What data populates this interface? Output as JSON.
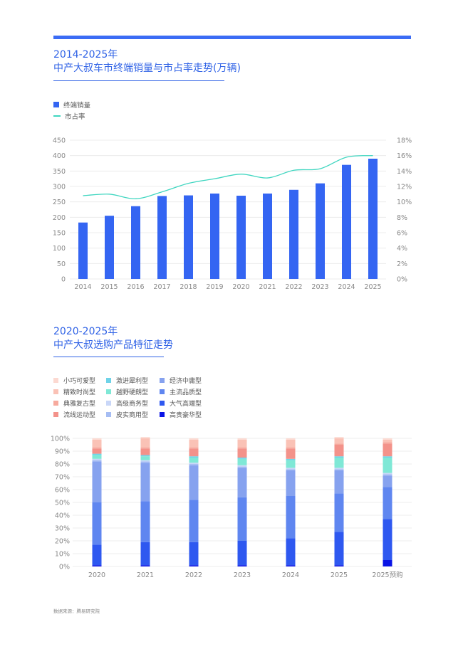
{
  "chart1": {
    "title_line1": "2014-2025年",
    "title_line2": "中产大叔车市终端销量与市占率走势(万辆)",
    "legend": [
      {
        "name": "终端销量",
        "kind": "bar",
        "color": "#3465f2"
      },
      {
        "name": "市占率",
        "kind": "line",
        "color": "#3fd6c0"
      }
    ]
  },
  "chart2": {
    "title_line1": "2020-2025年",
    "title_line2": "中产大叔选购产品特征走势"
  },
  "source": "数据来源：腾易研究院",
  "chart_data": [
    {
      "type": "bar",
      "categories": [
        "2014",
        "2015",
        "2016",
        "2017",
        "2018",
        "2019",
        "2020",
        "2021",
        "2022",
        "2023",
        "2024",
        "2025"
      ],
      "series": [
        {
          "name": "终端销量",
          "type": "bar",
          "axis": "left",
          "color": "#3465f2",
          "values": [
            183,
            205,
            236,
            269,
            271,
            277,
            270,
            277,
            289,
            310,
            370,
            390
          ]
        },
        {
          "name": "市占率",
          "type": "line",
          "axis": "right",
          "color": "#3fd6c0",
          "values": [
            10.8,
            11.0,
            10.4,
            11.3,
            12.4,
            13.0,
            13.6,
            13.1,
            14.1,
            14.3,
            15.8,
            16.0
          ]
        }
      ],
      "ylim": [
        0,
        450
      ],
      "yticks": [
        "0",
        "50",
        "100",
        "150",
        "200",
        "250",
        "300",
        "350",
        "400",
        "450"
      ],
      "y2lim": [
        0,
        18
      ],
      "y2ticks": [
        "0%",
        "2%",
        "4%",
        "6%",
        "8%",
        "10%",
        "12%",
        "14%",
        "16%",
        "18%"
      ],
      "grid": true,
      "legend_position": "top-left"
    },
    {
      "type": "bar",
      "stacked": true,
      "categories": [
        "2020",
        "2021",
        "2022",
        "2023",
        "2024",
        "2025",
        "2025预购"
      ],
      "ylim": [
        0,
        100
      ],
      "yticks": [
        "0%",
        "10%",
        "20%",
        "30%",
        "40%",
        "50%",
        "60%",
        "70%",
        "80%",
        "90%",
        "100%"
      ],
      "grid": true,
      "legend_position": "top-left",
      "series": [
        {
          "name": "高贵豪华型",
          "color": "#0a14e6",
          "values": [
            1,
            1,
            1,
            1,
            1,
            1,
            5
          ]
        },
        {
          "name": "大气高端型",
          "color": "#2e58f0",
          "values": [
            16,
            18,
            18,
            19,
            21,
            26,
            32
          ]
        },
        {
          "name": "主流品质型",
          "color": "#5f86f0",
          "values": [
            33,
            32,
            33,
            34,
            33,
            30,
            25
          ]
        },
        {
          "name": "经济中庸型",
          "color": "#86a2ef",
          "values": [
            32,
            30,
            27,
            23,
            20,
            18,
            9
          ]
        },
        {
          "name": "皮实商用型",
          "color": "#a6bdf3",
          "values": [
            1,
            1,
            1,
            1,
            1,
            1,
            1
          ]
        },
        {
          "name": "高级商务型",
          "color": "#c9d7f8",
          "values": [
            1,
            1,
            1,
            1,
            1,
            1,
            1
          ]
        },
        {
          "name": "越野硬朗型",
          "color": "#7fe8d6",
          "values": [
            3,
            3,
            4,
            5,
            6,
            8,
            12
          ]
        },
        {
          "name": "激进犀利型",
          "color": "#6fd3e8",
          "values": [
            1,
            1,
            1,
            1,
            1,
            1,
            1
          ]
        },
        {
          "name": "流线运动型",
          "color": "#f3928a",
          "values": [
            4,
            5,
            6,
            7,
            8,
            9,
            10
          ]
        },
        {
          "name": "典雅复古型",
          "color": "#f7aa9e",
          "values": [
            1,
            1,
            1,
            1,
            1,
            1,
            1
          ]
        },
        {
          "name": "精致时尚型",
          "color": "#fac2b6",
          "values": [
            6,
            7,
            6,
            6,
            6,
            4,
            2
          ]
        },
        {
          "name": "小巧可爱型",
          "color": "#fcd9d1",
          "values": [
            1,
            1,
            1,
            1,
            1,
            1,
            1
          ]
        }
      ],
      "legend_order": [
        "小巧可爱型",
        "激进犀利型",
        "经济中庸型",
        "精致时尚型",
        "越野硬朗型",
        "主流品质型",
        "典雅复古型",
        "高级商务型",
        "大气高端型",
        "流线运动型",
        "皮实商用型",
        "高贵豪华型"
      ]
    }
  ]
}
